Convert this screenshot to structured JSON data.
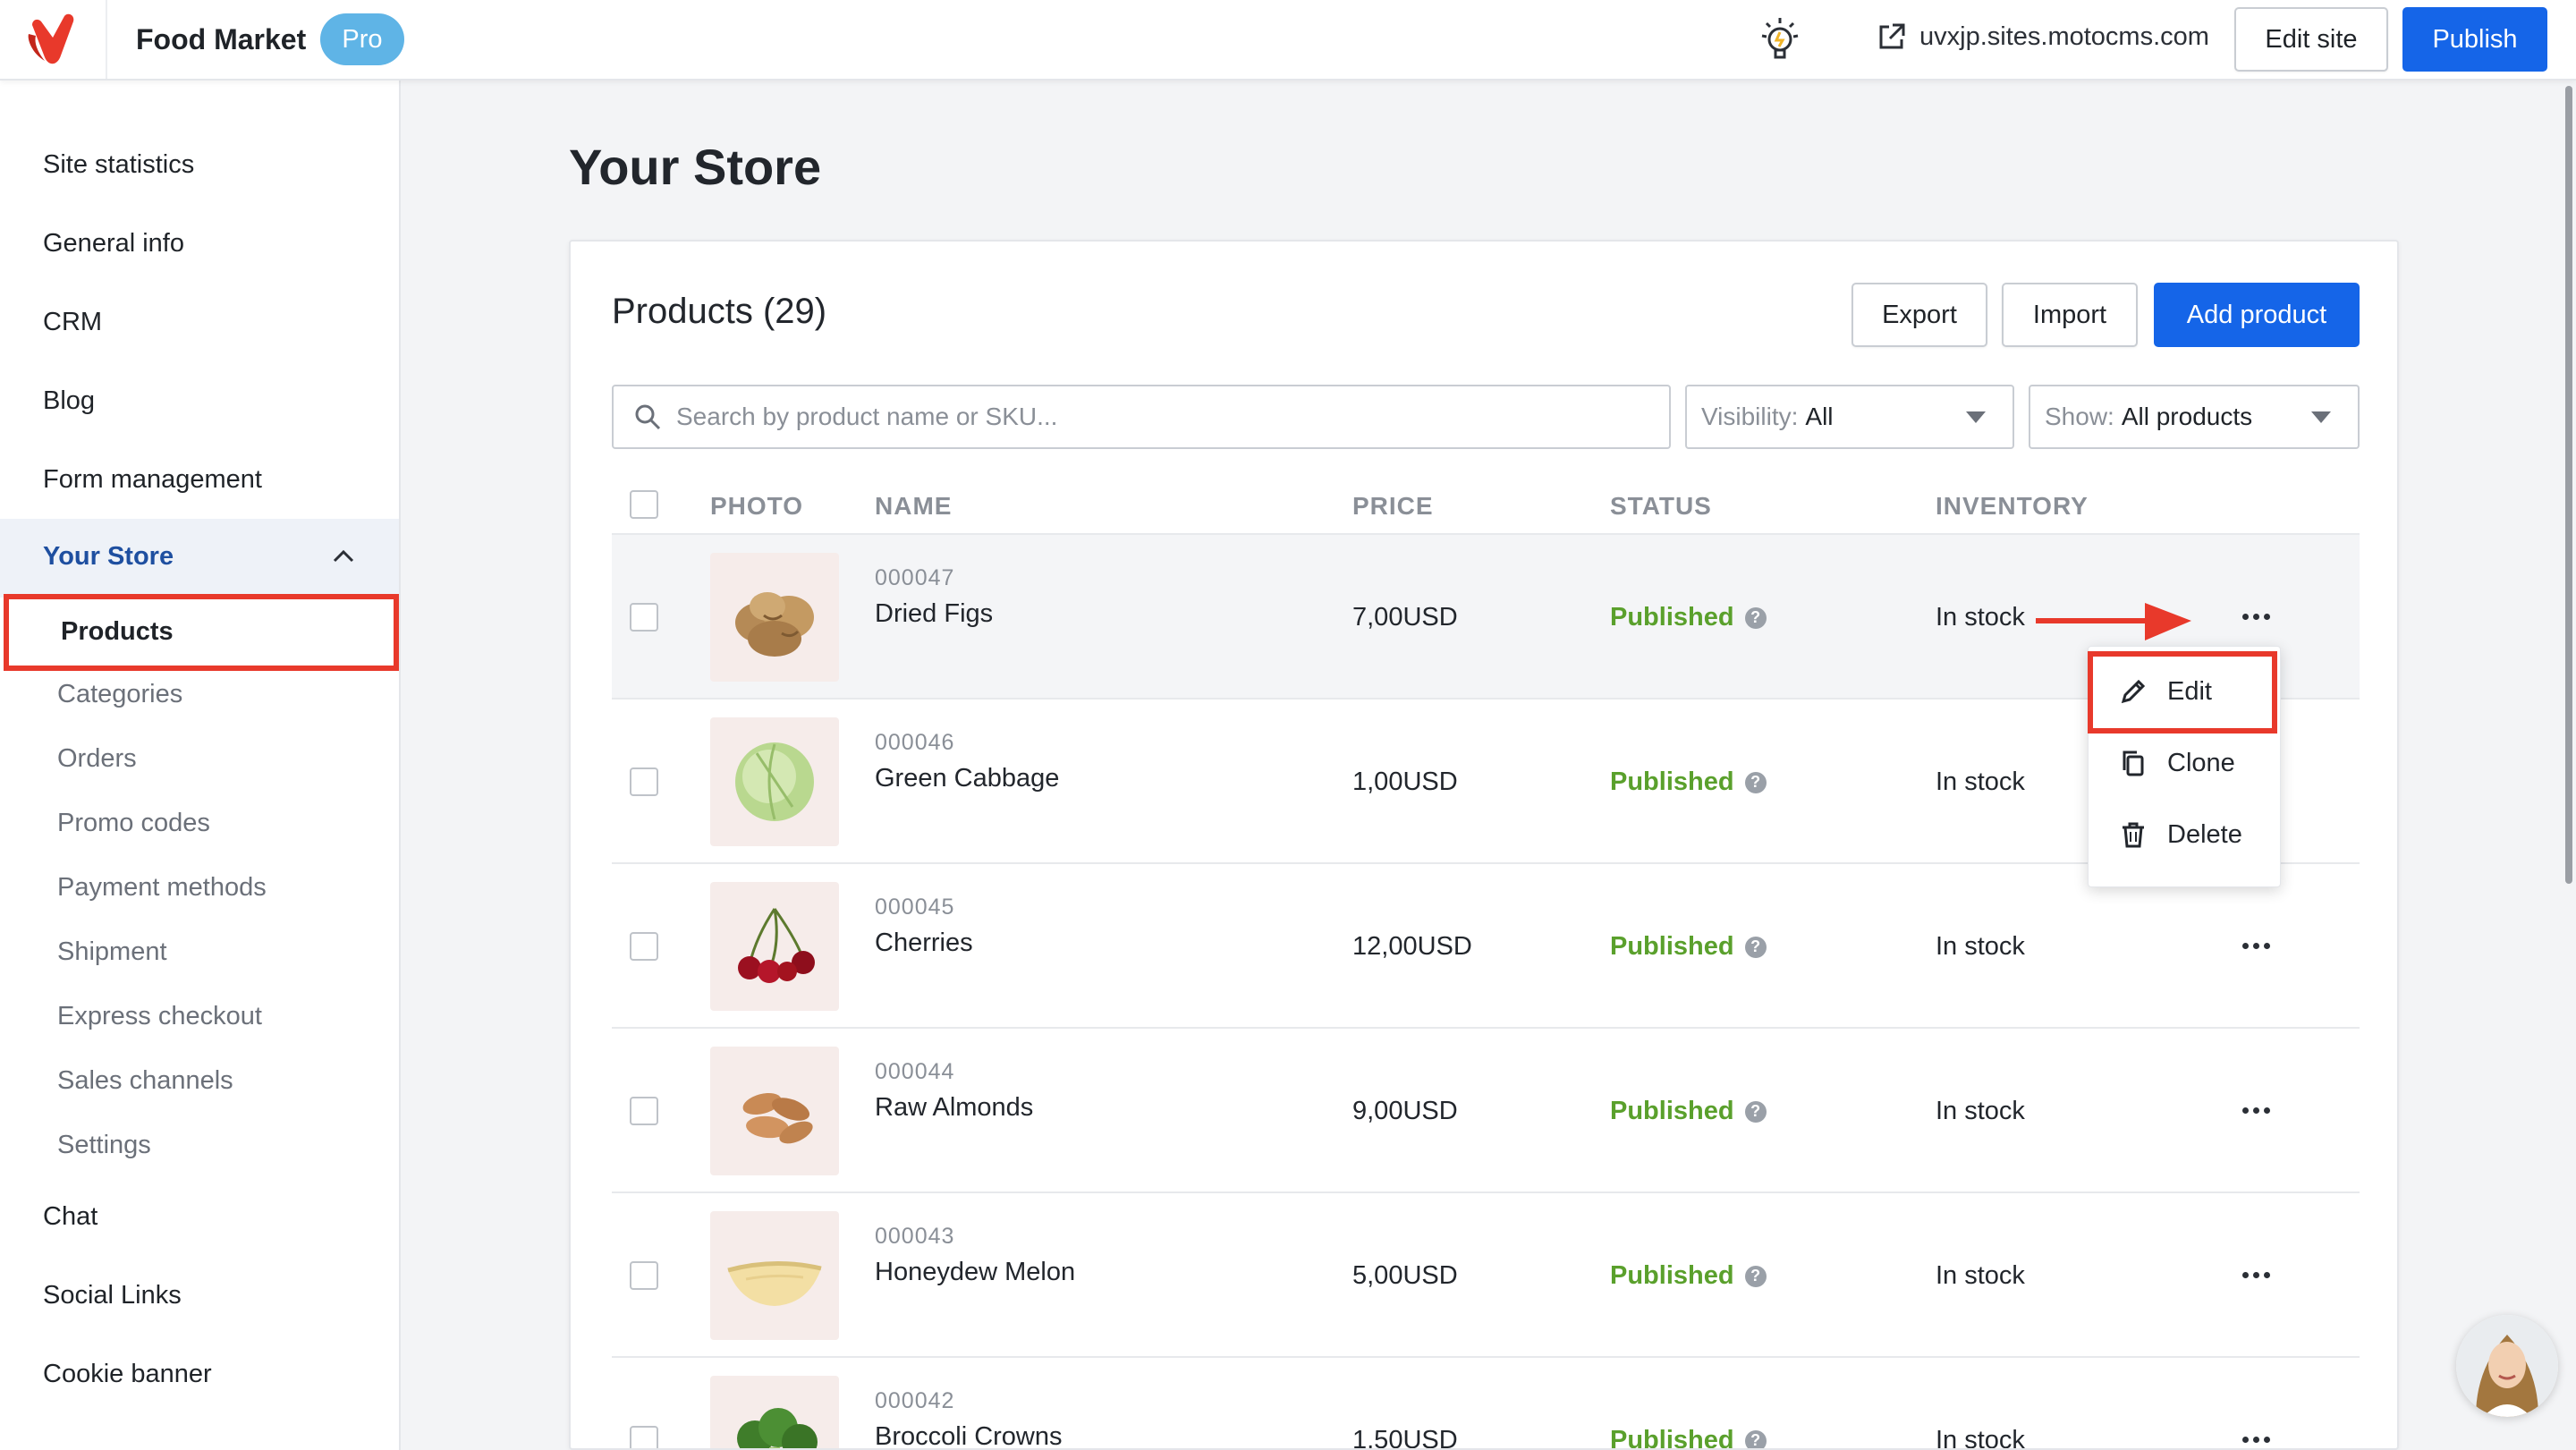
{
  "topbar": {
    "site_name": "Food Market",
    "badge": "Pro",
    "site_url": "uvxjp.sites.motocms.com",
    "edit_site_label": "Edit site",
    "publish_label": "Publish",
    "brand_color": "#e8392b",
    "primary_color": "#1565e8"
  },
  "sidebar": {
    "items": [
      {
        "label": "Site statistics"
      },
      {
        "label": "General info"
      },
      {
        "label": "CRM"
      },
      {
        "label": "Blog"
      },
      {
        "label": "Form management"
      },
      {
        "label": "Your Store",
        "expanded": true
      },
      {
        "label": "Chat"
      },
      {
        "label": "Social Links"
      },
      {
        "label": "Cookie banner"
      }
    ],
    "store_sub": [
      {
        "label": "Products",
        "active": true
      },
      {
        "label": "Categories"
      },
      {
        "label": "Orders"
      },
      {
        "label": "Promo codes"
      },
      {
        "label": "Payment methods"
      },
      {
        "label": "Shipment"
      },
      {
        "label": "Express checkout"
      },
      {
        "label": "Sales channels"
      },
      {
        "label": "Settings"
      }
    ]
  },
  "main": {
    "page_title": "Your Store",
    "card_title": "Products (29)",
    "export_label": "Export",
    "import_label": "Import",
    "add_label": "Add product",
    "search_placeholder": "Search by product name or SKU...",
    "visibility": {
      "key": "Visibility:",
      "value": "All"
    },
    "show": {
      "key": "Show:",
      "value": "All products"
    },
    "columns": [
      "PHOTO",
      "NAME",
      "PRICE",
      "STATUS",
      "INVENTORY"
    ],
    "products": [
      {
        "sku": "000047",
        "name": "Dried Figs",
        "price": "7,00USD",
        "status": "Published",
        "inventory": "In stock"
      },
      {
        "sku": "000046",
        "name": "Green Cabbage",
        "price": "1,00USD",
        "status": "Published",
        "inventory": "In stock"
      },
      {
        "sku": "000045",
        "name": "Cherries",
        "price": "12,00USD",
        "status": "Published",
        "inventory": "In stock"
      },
      {
        "sku": "000044",
        "name": "Raw Almonds",
        "price": "9,00USD",
        "status": "Published",
        "inventory": "In stock"
      },
      {
        "sku": "000043",
        "name": "Honeydew Melon",
        "price": "5,00USD",
        "status": "Published",
        "inventory": "In stock"
      },
      {
        "sku": "000042",
        "name": "Broccoli Crowns",
        "price": "1,50USD",
        "status": "Published",
        "inventory": "In stock"
      }
    ],
    "row_menu": {
      "edit": "Edit",
      "clone": "Clone",
      "delete": "Delete"
    },
    "status_color": "#5aa02c"
  }
}
